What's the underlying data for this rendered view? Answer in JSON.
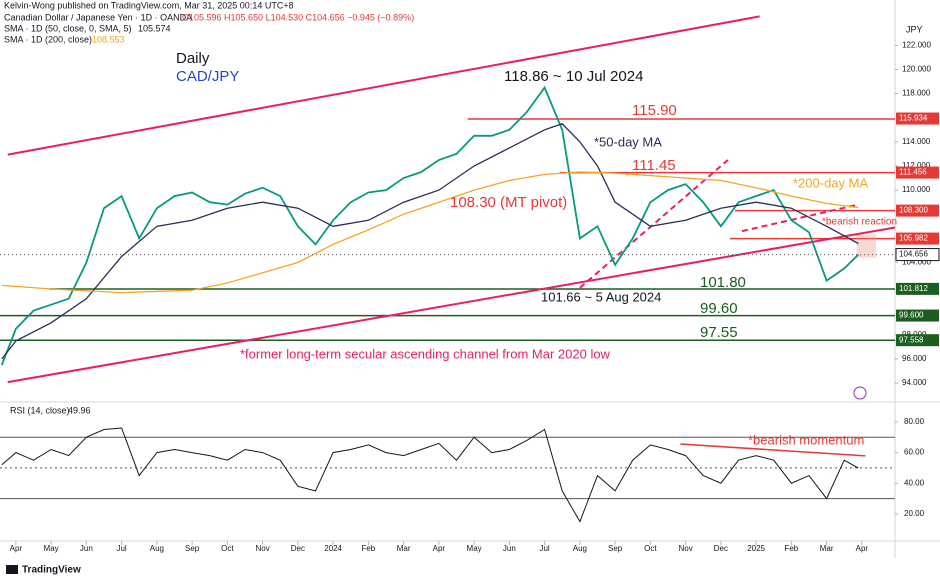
{
  "chart_data": {
    "type": "line",
    "publisher": "Kelvin-Wong published on TradingView.com, Mar 31, 2025 00:14 UTC+8",
    "ohlc": "O105.596 H105.650 L104.530 C104.656 −0.945 (−0.89%)",
    "currency": "JPY",
    "brand": "TradingView",
    "xlim": [
      -0.45,
      24.94
    ],
    "xticks": [
      {
        "value": 0,
        "label": "Apr"
      },
      {
        "value": 1,
        "label": "May"
      },
      {
        "value": 2,
        "label": "Jun"
      },
      {
        "value": 3,
        "label": "Jul"
      },
      {
        "value": 4,
        "label": "Aug"
      },
      {
        "value": 5,
        "label": "Sep"
      },
      {
        "value": 6,
        "label": "Oct"
      },
      {
        "value": 7,
        "label": "Nov"
      },
      {
        "value": 8,
        "label": "Dec"
      },
      {
        "value": 9,
        "label": "2024"
      },
      {
        "value": 10,
        "label": "Feb"
      },
      {
        "value": 11,
        "label": "Mar"
      },
      {
        "value": 12,
        "label": "Apr"
      },
      {
        "value": 13,
        "label": "May"
      },
      {
        "value": 14,
        "label": "Jun"
      },
      {
        "value": 15,
        "label": "Jul"
      },
      {
        "value": 16,
        "label": "Aug"
      },
      {
        "value": 17,
        "label": "Sep"
      },
      {
        "value": 18,
        "label": "Oct"
      },
      {
        "value": 19,
        "label": "Nov"
      },
      {
        "value": 20,
        "label": "Dec"
      },
      {
        "value": 21,
        "label": "2025"
      },
      {
        "value": 22,
        "label": "Feb"
      },
      {
        "value": 23,
        "label": "Mar"
      },
      {
        "value": 24,
        "label": "Apr"
      }
    ],
    "ylim": [
      92.6,
      124.6
    ],
    "yticks": [
      {
        "value": 94,
        "label": "94.000"
      },
      {
        "value": 96,
        "label": "96.000"
      },
      {
        "value": 98,
        "label": "98.000"
      },
      {
        "value": 104,
        "label": "104.000"
      },
      {
        "value": 110,
        "label": "110.000"
      },
      {
        "value": 112,
        "label": "112.000"
      },
      {
        "value": 114,
        "label": "114.000"
      },
      {
        "value": 118,
        "label": "118.000"
      },
      {
        "value": 120,
        "label": "120.000"
      },
      {
        "value": 122,
        "label": "122.000"
      }
    ],
    "series": [
      {
        "name": "Canadian Dollar / Japanese Yen · 1D · OANDA",
        "color": "#089981",
        "last": 104.656,
        "x": [
          -0.4,
          0,
          0.5,
          1,
          1.5,
          2,
          2.5,
          3,
          3.5,
          4,
          4.5,
          5,
          5.5,
          6,
          6.5,
          7,
          7.5,
          8,
          8.5,
          9,
          9.5,
          10,
          10.5,
          11,
          11.5,
          12,
          12.5,
          13,
          13.5,
          14,
          14.5,
          15,
          15.5,
          16,
          16.5,
          17,
          17.5,
          18,
          18.5,
          19,
          19.5,
          20,
          20.5,
          21,
          21.5,
          22,
          22.5,
          23,
          23.5,
          23.9
        ],
        "values": [
          95.5,
          98.5,
          100,
          100.5,
          101,
          104,
          108.5,
          109.5,
          106,
          108.5,
          109.5,
          109.8,
          109,
          108.8,
          109.7,
          110.2,
          109.5,
          107,
          105.5,
          107.5,
          109,
          109.8,
          110,
          111,
          111.5,
          112.5,
          113,
          114.5,
          114.5,
          115,
          116.5,
          118.5,
          115,
          106,
          107,
          103.8,
          106,
          109,
          110,
          110.5,
          109,
          107,
          109,
          109.5,
          110,
          107.5,
          106.5,
          102.5,
          103.5,
          104.656
        ]
      },
      {
        "name": "SMA · 1D (50, close, 0, SMA, 5)",
        "color": "#2a2e59",
        "last": 105.574,
        "x": [
          -0.4,
          0,
          1,
          2,
          3,
          4,
          5,
          6,
          7,
          8,
          9,
          10,
          11,
          12,
          13,
          14,
          15,
          15.5,
          16,
          16.5,
          17,
          18,
          19,
          20,
          21,
          22,
          23,
          23.9
        ],
        "values": [
          96,
          97.5,
          99,
          101,
          104.5,
          107,
          107.5,
          108.5,
          109,
          108.5,
          107,
          107.5,
          109,
          110,
          112,
          113.5,
          115,
          115.5,
          114,
          112,
          109,
          107,
          107.5,
          108.5,
          109,
          108.5,
          107,
          105.574
        ]
      },
      {
        "name": "SMA · 1D (200, close)",
        "color": "#f5a623",
        "last": 108.553,
        "x": [
          -0.4,
          1,
          3,
          5,
          6,
          8,
          9,
          10,
          11,
          12,
          13,
          14,
          15,
          16,
          17,
          18,
          19,
          20,
          21,
          22,
          23,
          23.9
        ],
        "values": [
          102.1,
          101.8,
          101.5,
          101.7,
          102.3,
          104,
          105.5,
          106.7,
          108,
          109,
          110,
          110.8,
          111.3,
          111.5,
          111.4,
          111.2,
          111,
          110.8,
          110.2,
          109.5,
          108.9,
          108.553
        ]
      }
    ],
    "levels": [
      {
        "value": 115.9,
        "start": 12.82,
        "color": "#e53935"
      },
      {
        "value": 111.45,
        "start": 15.43,
        "color": "#e53935"
      },
      {
        "value": 108.3,
        "start": 20.4,
        "color": "#e53935"
      },
      {
        "value": 105.982,
        "start": 20.26,
        "color": "#e53935"
      },
      {
        "value": 101.8,
        "start": 0.96,
        "color": "#1b5e20"
      },
      {
        "value": 99.6,
        "start": -0.45,
        "color": "#1b5e20"
      },
      {
        "value": 97.55,
        "start": -0.45,
        "color": "#1b5e20"
      }
    ],
    "trendlines": [
      {
        "x": [
          -0.23,
          21.1
        ],
        "y": [
          112.94,
          124.4
        ],
        "color": "#e91e63",
        "dashed": false
      },
      {
        "x": [
          -0.23,
          24.94
        ],
        "y": [
          94.08,
          106.9
        ],
        "color": "#e91e63",
        "dashed": false
      },
      {
        "x": [
          16,
          20.2
        ],
        "y": [
          101.9,
          112.5
        ],
        "color": "#e91e63",
        "dashed": true
      },
      {
        "x": [
          20.6,
          23.9
        ],
        "y": [
          106.6,
          108.8
        ],
        "color": "#e91e63",
        "dashed": true
      }
    ],
    "price_labels": [
      {
        "value": 115.934,
        "label": "115.934",
        "color": "#e53935"
      },
      {
        "value": 111.456,
        "label": "111.456",
        "color": "#e53935"
      },
      {
        "value": 108.3,
        "label": "108.300",
        "color": "#e53935"
      },
      {
        "value": 105.982,
        "label": "105.982",
        "color": "#e53935"
      },
      {
        "value": 104.656,
        "label": "104.656",
        "color": "#ffffff"
      },
      {
        "value": 101.812,
        "label": "101.812",
        "color": "#1b5e20"
      },
      {
        "value": 99.6,
        "label": "99.600",
        "color": "#1b5e20"
      },
      {
        "value": 97.558,
        "label": "97.558",
        "color": "#1b5e20"
      }
    ],
    "annotations": [
      {
        "text": "Daily",
        "color": "#131722"
      },
      {
        "text": "CAD/JPY",
        "color": "#2346d0"
      },
      {
        "text": "118.86 ~ 10 Jul 2024",
        "color": "#131722"
      },
      {
        "text": "115.90",
        "color": "#e53935"
      },
      {
        "text": "*50-day MA",
        "color": "#2a2e59"
      },
      {
        "text": "111.45",
        "color": "#e53935"
      },
      {
        "text": "*200-day MA",
        "color": "#f5a623"
      },
      {
        "text": "108.30 (MT pivot)",
        "color": "#e53935"
      },
      {
        "text": "*bearish reaction",
        "color": "#e53935"
      },
      {
        "text": "101.80",
        "color": "#1b5e20"
      },
      {
        "text": "101.66 ~ 5 Aug 2024",
        "color": "#131722"
      },
      {
        "text": "99.60",
        "color": "#1b5e20"
      },
      {
        "text": "97.55",
        "color": "#1b5e20"
      },
      {
        "text": "*former long-term secular ascending channel from Mar 2020 low",
        "color": "#e91e63"
      },
      {
        "text": "*bearish momentum",
        "color": "#e53935"
      }
    ],
    "rsi": {
      "name": "RSI (14, close)",
      "last": 49.96,
      "color": "#131722",
      "ylim": [
        3,
        91
      ],
      "yticks": [
        {
          "value": 20,
          "label": "20.00"
        },
        {
          "value": 40,
          "label": "40.00"
        },
        {
          "value": 60,
          "label": "60.00"
        },
        {
          "value": 80,
          "label": "80.00"
        }
      ],
      "levels": [
        70,
        50,
        30
      ],
      "x": [
        -0.4,
        0,
        0.5,
        1,
        1.5,
        2,
        2.5,
        3,
        3.5,
        4,
        4.5,
        5,
        5.5,
        6,
        6.5,
        7,
        7.5,
        8,
        8.5,
        9,
        9.5,
        10,
        10.5,
        11,
        11.5,
        12,
        12.5,
        13,
        13.5,
        14,
        14.5,
        15,
        15.5,
        16,
        16.5,
        17,
        17.5,
        18,
        18.5,
        19,
        19.5,
        20,
        20.5,
        21,
        21.5,
        22,
        22.5,
        23,
        23.5,
        23.9
      ],
      "values": [
        52,
        60,
        55,
        62,
        58,
        70,
        75,
        76,
        45,
        60,
        62,
        60,
        58,
        55,
        62,
        60,
        55,
        38,
        35,
        60,
        62,
        65,
        60,
        58,
        62,
        66,
        55,
        70,
        60,
        62,
        68,
        75,
        35,
        15,
        45,
        35,
        55,
        65,
        62,
        58,
        45,
        40,
        55,
        58,
        55,
        40,
        45,
        30,
        55,
        49.96
      ],
      "trendline": {
        "x": [
          18.85,
          24.1
        ],
        "y": [
          65.6,
          57.8
        ],
        "color": "#e53935"
      }
    }
  }
}
